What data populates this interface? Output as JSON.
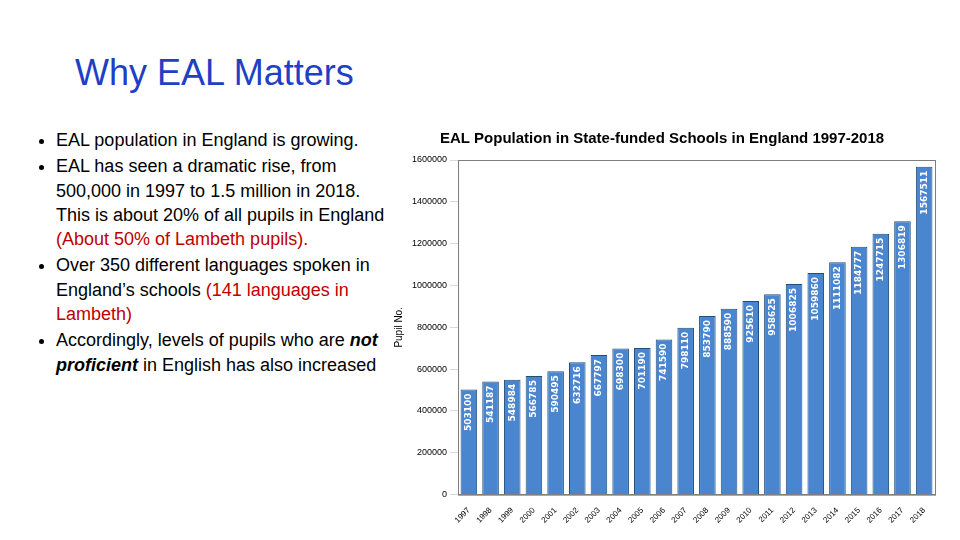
{
  "header": {
    "title": "Why EAL Matters"
  },
  "bullets": [
    [
      {
        "text": "EAL population in England is growing."
      }
    ],
    [
      {
        "text": "EAL has seen a dramatic rise, from 500,000 in 1997 to 1.5 million in 2018. This is about 20% of all pupils in England "
      },
      {
        "text": "(About 50% of Lambeth pupils).",
        "color": "#c00000"
      }
    ],
    [
      {
        "text": "Over 350 different languages spoken in England’s schools "
      },
      {
        "text": "(141 languages in Lambeth)",
        "color": "#c00000"
      }
    ],
    [
      {
        "text": "Accordingly, levels of pupils who are "
      },
      {
        "text": "not proficient",
        "style": "bold-italic"
      },
      {
        "text": " in English has also increased"
      }
    ]
  ],
  "chart_data": {
    "type": "bar",
    "title": "EAL Population in State-funded Schools in England 1997-2018",
    "y_label": "Pupil No.",
    "categories": [
      "1997",
      "1998",
      "1999",
      "2000",
      "2001",
      "2002",
      "2003",
      "2004",
      "2005",
      "2006",
      "2007",
      "2008",
      "2009",
      "2010",
      "2011",
      "2012",
      "2013",
      "2014",
      "2015",
      "2016",
      "2017",
      "2018"
    ],
    "values": [
      503100,
      541187,
      548984,
      566785,
      590495,
      632716,
      667797,
      698300,
      701190,
      741590,
      798110,
      853790,
      888590,
      925610,
      958625,
      1006825,
      1059860,
      1111082,
      1184777,
      1247715,
      1306819,
      1567511
    ],
    "color": "#4a86d0",
    "ylim": [
      0,
      1600000
    ],
    "yticks": [
      0,
      200000,
      400000,
      600000,
      800000,
      1000000,
      1200000,
      1400000,
      1600000
    ],
    "grid": false,
    "data_labels": true
  }
}
